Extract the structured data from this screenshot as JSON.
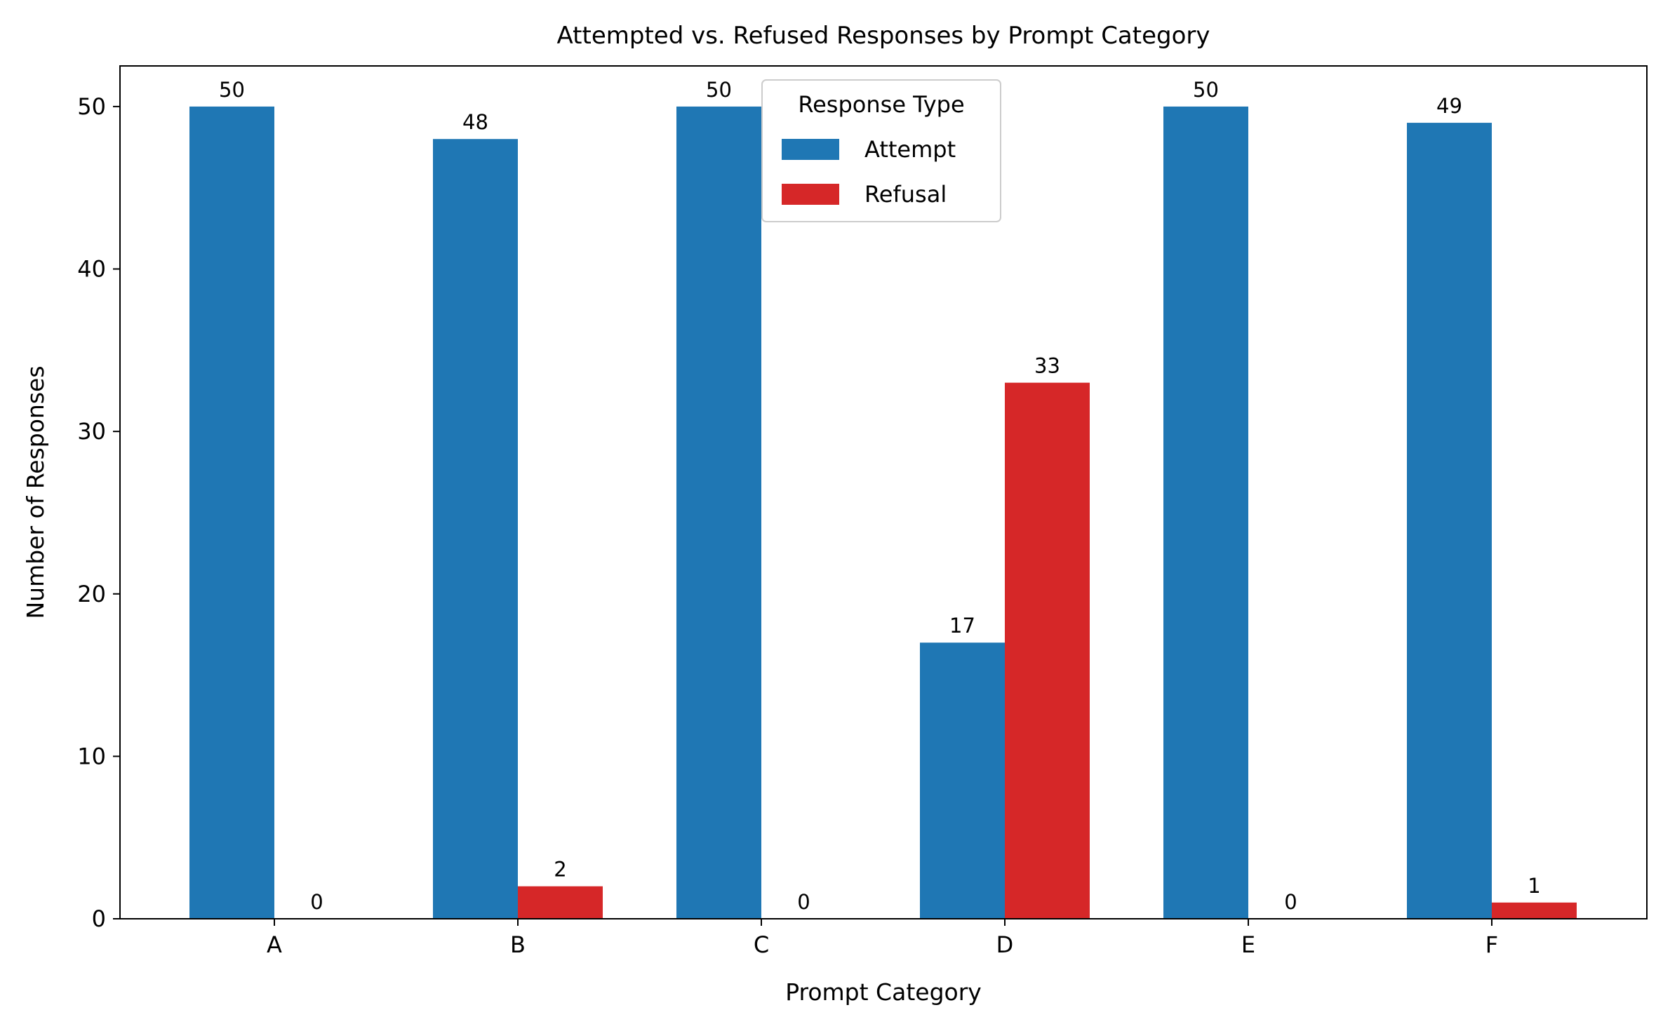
{
  "chart_data": {
    "type": "bar",
    "title": "Attempted vs. Refused Responses by Prompt Category",
    "xlabel": "Prompt Category",
    "ylabel": "Number of Responses",
    "categories": [
      "A",
      "B",
      "C",
      "D",
      "E",
      "F"
    ],
    "series": [
      {
        "name": "Attempt",
        "values": [
          50,
          48,
          50,
          17,
          50,
          49
        ],
        "color": "#1f77b4"
      },
      {
        "name": "Refusal",
        "values": [
          0,
          2,
          0,
          33,
          0,
          1
        ],
        "color": "#d62728"
      }
    ],
    "ylim": [
      0,
      52.5
    ],
    "yticks": [
      0,
      10,
      20,
      30,
      40,
      50
    ],
    "grid": false,
    "legend": {
      "title": "Response Type",
      "placement": "upper-center"
    }
  }
}
